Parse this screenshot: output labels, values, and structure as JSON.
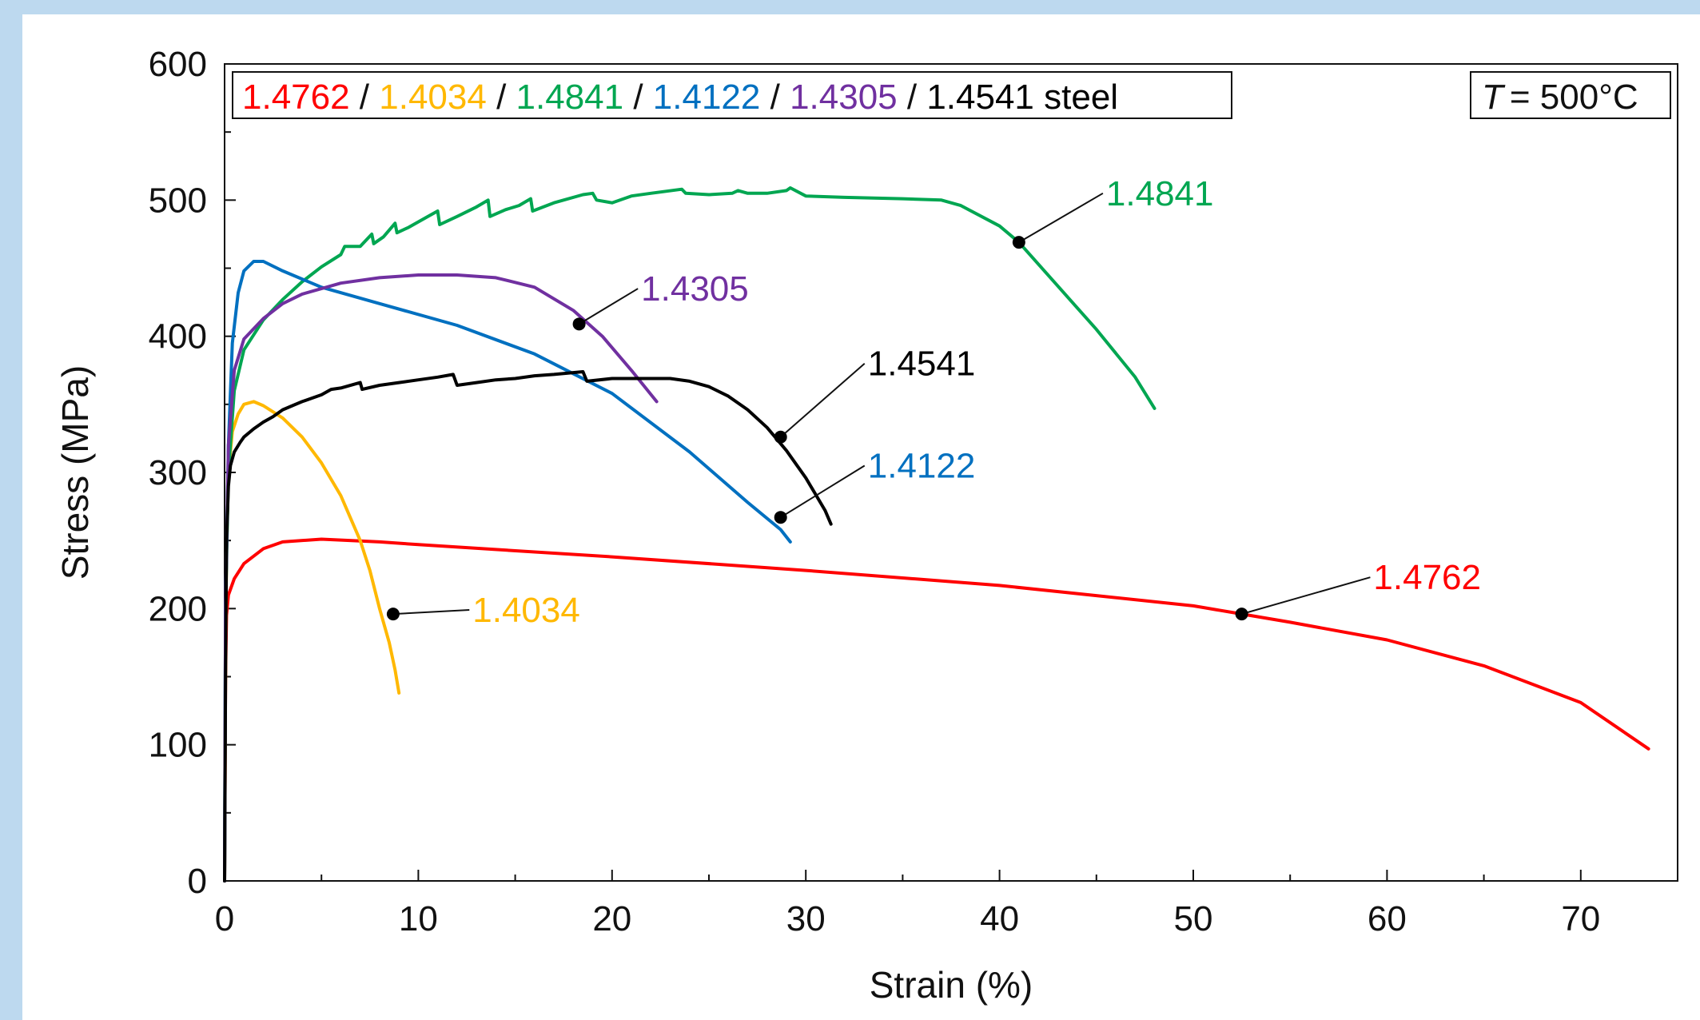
{
  "chart_data": {
    "type": "line",
    "xlabel": "Strain (%)",
    "ylabel": "Stress (MPa)",
    "xlim": [
      0,
      75
    ],
    "ylim": [
      0,
      600
    ],
    "x_ticks": [
      0,
      10,
      20,
      30,
      40,
      50,
      60,
      70
    ],
    "y_ticks": [
      0,
      100,
      200,
      300,
      400,
      500,
      600
    ],
    "grid": false,
    "legend_placement": "top-left",
    "legend_items": [
      {
        "label": "1.4762",
        "color": "#ff0000"
      },
      {
        "label": "1.4034",
        "color": "#ffb800"
      },
      {
        "label": "1.4841",
        "color": "#00a651"
      },
      {
        "label": "1.4122",
        "color": "#0070c0"
      },
      {
        "label": "1.4305",
        "color": "#7030a0"
      },
      {
        "label": "1.4541 steel",
        "color": "#000000"
      }
    ],
    "legend_separator": " / ",
    "temperature_label": "= 500°C",
    "temperature_symbol": "T",
    "series": [
      {
        "name": "1.4762",
        "color": "#ff0000",
        "x": [
          0,
          0.05,
          0.1,
          0.2,
          0.5,
          1,
          2,
          3,
          5,
          8,
          10,
          20,
          30,
          40,
          50,
          52.5,
          55,
          60,
          65,
          70,
          73.5
        ],
        "y": [
          0,
          150,
          195,
          210,
          222,
          233,
          244,
          249,
          251,
          249,
          247,
          238,
          228,
          217,
          202,
          196,
          190,
          177,
          158,
          131,
          97
        ]
      },
      {
        "name": "1.4034",
        "color": "#ffb800",
        "x": [
          0,
          0.05,
          0.1,
          0.2,
          0.4,
          0.7,
          1,
          1.5,
          2,
          3,
          4,
          5,
          6,
          7,
          7.5,
          8,
          8.5,
          8.8,
          9.0
        ],
        "y": [
          0,
          160,
          240,
          300,
          330,
          343,
          350,
          352,
          349,
          340,
          326,
          307,
          283,
          250,
          228,
          200,
          175,
          155,
          138
        ]
      },
      {
        "name": "1.4841",
        "color": "#00a651",
        "x": [
          0,
          0.05,
          0.2,
          0.5,
          1,
          2,
          3,
          4,
          5,
          6,
          6.2,
          7,
          7.6,
          7.7,
          8.2,
          8.8,
          8.9,
          9.5,
          10.5,
          11.0,
          11.1,
          12,
          13,
          13.6,
          13.7,
          14.5,
          15.2,
          15.8,
          15.9,
          17,
          18.5,
          19.0,
          19.2,
          20,
          21,
          22,
          23.6,
          23.8,
          25,
          26.2,
          26.5,
          27,
          28,
          29.0,
          29.2,
          30,
          32,
          35,
          37,
          38,
          40,
          41,
          43,
          45,
          47,
          48
        ],
        "y": [
          0,
          200,
          300,
          360,
          390,
          412,
          427,
          440,
          451,
          460,
          466,
          466,
          475,
          468,
          473,
          483,
          476,
          480,
          488,
          492,
          482,
          488,
          495,
          500,
          488,
          493,
          496,
          501,
          492,
          498,
          504,
          505,
          500,
          498,
          503,
          505,
          508,
          505,
          504,
          505,
          507,
          505,
          505,
          507,
          509,
          503,
          502,
          501,
          500,
          496,
          481,
          469,
          437,
          405,
          370,
          347
        ]
      },
      {
        "name": "1.4122",
        "color": "#0070c0",
        "x": [
          0,
          0.05,
          0.2,
          0.4,
          0.7,
          1,
          1.5,
          2,
          3,
          5,
          8,
          12,
          16,
          20,
          24,
          27,
          28.7,
          29.2
        ],
        "y": [
          0,
          200,
          320,
          395,
          432,
          448,
          455,
          455,
          448,
          436,
          424,
          408,
          387,
          358,
          315,
          278,
          258,
          249
        ]
      },
      {
        "name": "1.4305",
        "color": "#7030a0",
        "x": [
          0,
          0.05,
          0.2,
          0.5,
          1,
          2,
          3,
          4,
          6,
          8,
          10,
          12,
          14,
          16,
          18,
          19.5,
          21,
          22.3
        ],
        "y": [
          0,
          200,
          320,
          375,
          398,
          413,
          424,
          431,
          439,
          443,
          445,
          445,
          443,
          436,
          419,
          400,
          375,
          352
        ]
      },
      {
        "name": "1.4541",
        "color": "#000000",
        "x": [
          0,
          0.05,
          0.1,
          0.2,
          0.3,
          0.5,
          0.8,
          1,
          1.5,
          2,
          2.5,
          3,
          3.5,
          4,
          5,
          5.5,
          6,
          7,
          7.1,
          8,
          9,
          10,
          11,
          11.8,
          12,
          13,
          14,
          15,
          16,
          17,
          18.5,
          18.7,
          20,
          21,
          22,
          23,
          24,
          25,
          26,
          27,
          28,
          29,
          30,
          31,
          31.3
        ],
        "y": [
          0,
          150,
          250,
          290,
          305,
          315,
          322,
          326,
          332,
          337,
          341,
          346,
          349,
          352,
          357,
          361,
          362,
          366,
          361,
          364,
          366,
          368,
          370,
          372,
          364,
          366,
          368,
          369,
          371,
          372,
          374,
          367,
          369,
          369,
          369,
          369,
          367,
          363,
          356,
          346,
          333,
          316,
          296,
          272,
          262
        ]
      }
    ],
    "annotations": [
      {
        "label": "1.4841",
        "color": "#00a651",
        "point": [
          41.0,
          469
        ],
        "text_at": [
          45.5,
          505
        ]
      },
      {
        "label": "1.4305",
        "color": "#7030a0",
        "point": [
          18.3,
          409
        ],
        "text_at": [
          21.5,
          435
        ]
      },
      {
        "label": "1.4541",
        "color": "#000000",
        "point": [
          28.7,
          326
        ],
        "text_at": [
          33.2,
          380
        ]
      },
      {
        "label": "1.4122",
        "color": "#0070c0",
        "point": [
          28.7,
          267
        ],
        "text_at": [
          33.2,
          305
        ]
      },
      {
        "label": "1.4762",
        "color": "#ff0000",
        "point": [
          52.5,
          196
        ],
        "text_at": [
          59.3,
          223
        ]
      },
      {
        "label": "1.4034",
        "color": "#ffb800",
        "point": [
          8.7,
          196
        ],
        "text_at": [
          12.8,
          199
        ]
      }
    ]
  }
}
